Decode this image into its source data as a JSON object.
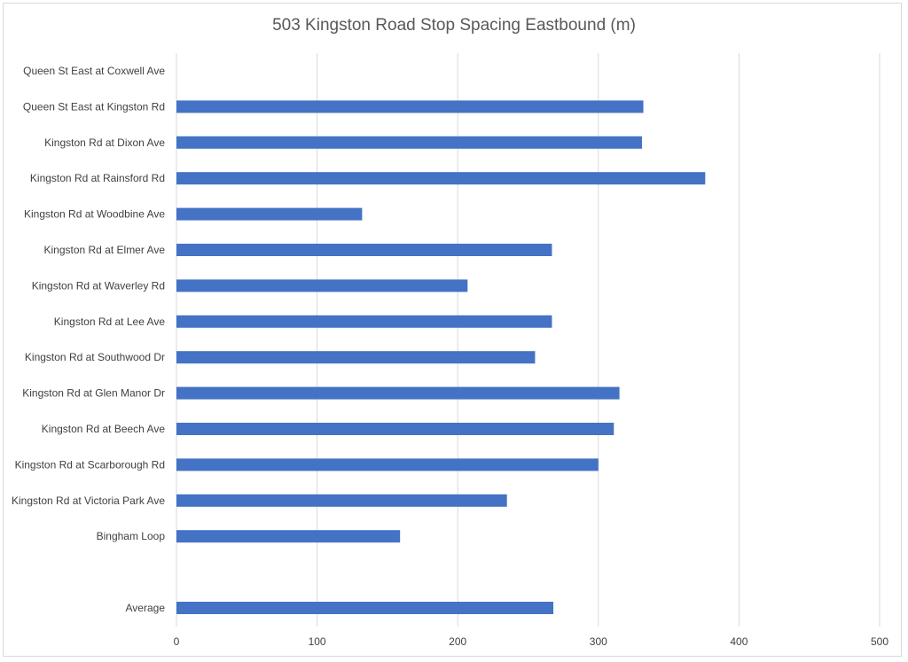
{
  "chart_data": {
    "type": "bar",
    "orientation": "horizontal",
    "title": "503 Kingston Road Stop Spacing Eastbound (m)",
    "xlabel": "",
    "ylabel": "",
    "xlim": [
      0,
      500
    ],
    "x_ticks": [
      0,
      100,
      200,
      300,
      400,
      500
    ],
    "grid": true,
    "legend": "none",
    "bar_color": "#4472c4",
    "categories": [
      "Queen St East at Coxwell Ave",
      "Queen St East at Kingston Rd",
      "Kingston Rd at Dixon Ave",
      "Kingston Rd at Rainsford Rd",
      "Kingston Rd at Woodbine Ave",
      "Kingston Rd at Elmer Ave",
      "Kingston Rd at Waverley Rd",
      "Kingston Rd at Lee Ave",
      "Kingston Rd at Southwood Dr",
      "Kingston Rd at Glen Manor Dr",
      "Kingston Rd at Beech Ave",
      "Kingston Rd at Scarborough Rd",
      "Kingston Rd at Victoria Park Ave",
      "Bingham Loop",
      "",
      "Average"
    ],
    "values": [
      null,
      332,
      331,
      376,
      132,
      267,
      207,
      267,
      255,
      315,
      311,
      300,
      235,
      159,
      null,
      268
    ]
  }
}
